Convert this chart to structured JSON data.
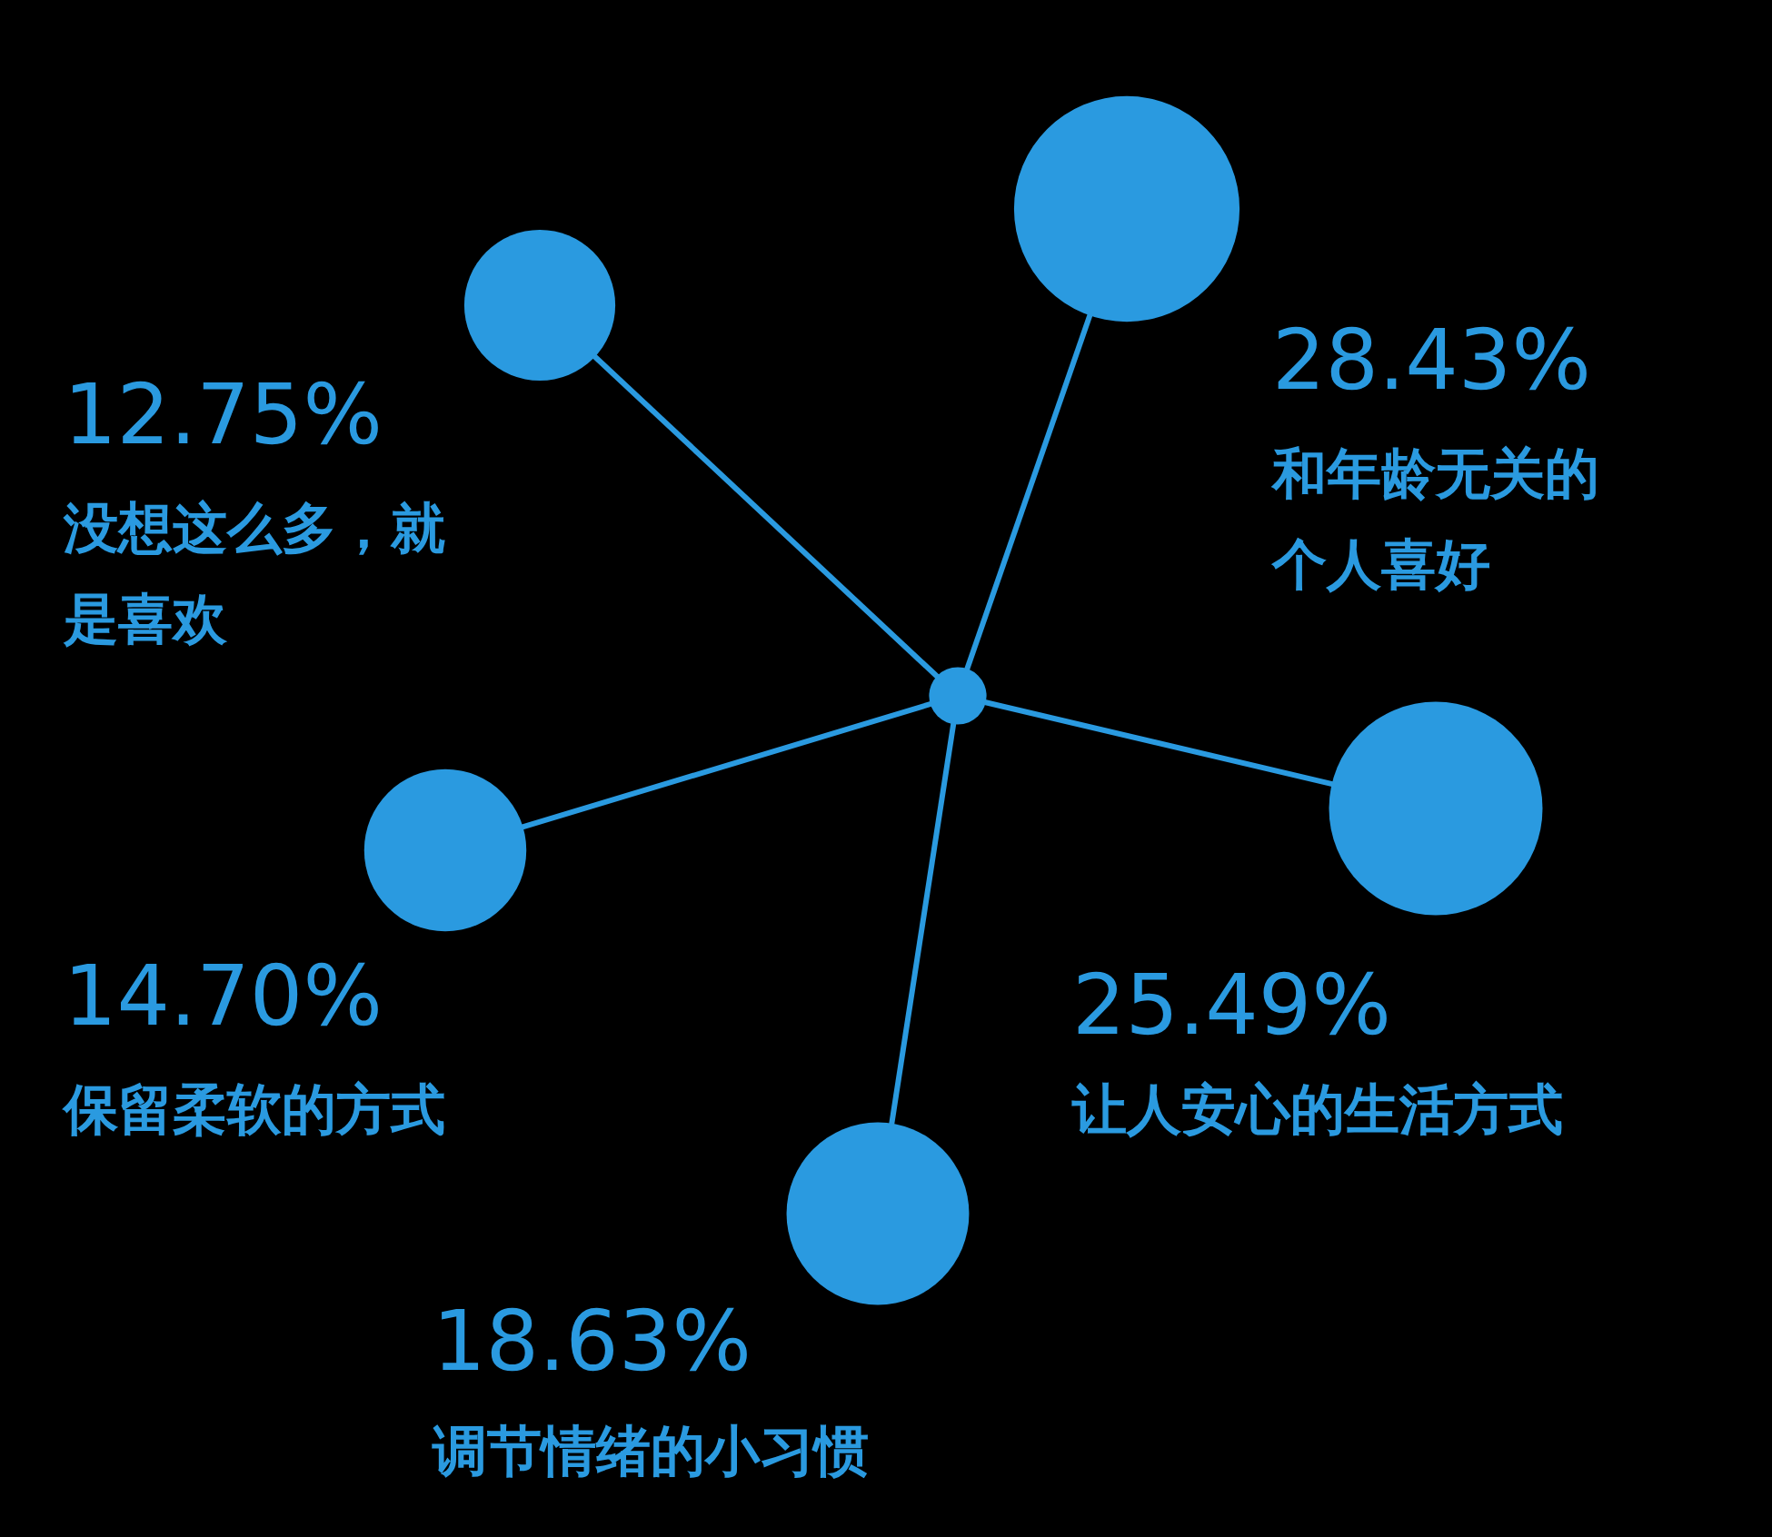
{
  "chart_data": {
    "type": "other",
    "categories": [
      "和年龄无关的个人喜好",
      "让人安心的生活方式",
      "调节情绪的小习惯",
      "保留柔软的方式",
      "没想这么多，就是喜欢"
    ],
    "values": [
      28.43,
      25.49,
      18.63,
      14.7,
      12.75
    ],
    "value_labels": [
      "28.43%",
      "25.49%",
      "18.63%",
      "14.70%",
      "12.75%"
    ],
    "color": "#2a9ae0"
  }
}
